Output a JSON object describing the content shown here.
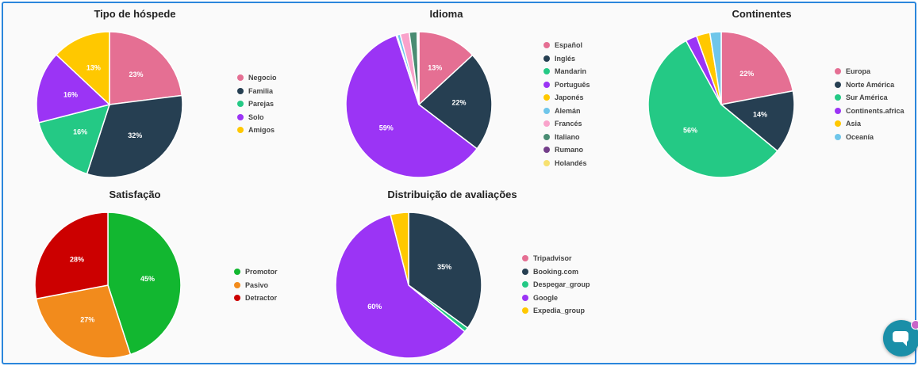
{
  "chart_data": [
    {
      "type": "pie",
      "title": "Tipo de hóspede",
      "slices": [
        {
          "label": "Negocio",
          "value": 23,
          "color": "#e56f93",
          "shown": "23%"
        },
        {
          "label": "Familia",
          "value": 32,
          "color": "#263f52",
          "shown": "32%"
        },
        {
          "label": "Parejas",
          "value": 16,
          "color": "#24c985",
          "shown": "16%"
        },
        {
          "label": "Solo",
          "value": 16,
          "color": "#9b34f5",
          "shown": "16%"
        },
        {
          "label": "Amigos",
          "value": 13,
          "color": "#ffc800",
          "shown": "13%"
        }
      ]
    },
    {
      "type": "pie",
      "title": "Idioma",
      "slices": [
        {
          "label": "Español",
          "value": 13,
          "color": "#e56f93",
          "shown": "13%"
        },
        {
          "label": "Inglés",
          "value": 22,
          "color": "#263f52",
          "shown": "22%"
        },
        {
          "label": "Mandarin",
          "value": 0,
          "color": "#24c985",
          "shown": ""
        },
        {
          "label": "Português",
          "value": 59,
          "color": "#9b34f5",
          "shown": "59%"
        },
        {
          "label": "Japonés",
          "value": 0.2,
          "color": "#ffc800",
          "shown": ""
        },
        {
          "label": "Alemán",
          "value": 0.7,
          "color": "#6fc6ea",
          "shown": ""
        },
        {
          "label": "Francés",
          "value": 2,
          "color": "#f9a3cb",
          "shown": ""
        },
        {
          "label": "Italiano",
          "value": 1.7,
          "color": "#4a8c73",
          "shown": ""
        },
        {
          "label": "Rumano",
          "value": 0.3,
          "color": "#733e8a",
          "shown": ""
        },
        {
          "label": "Holandés",
          "value": 0.1,
          "color": "#f7e170",
          "shown": ""
        }
      ]
    },
    {
      "type": "pie",
      "title": "Continentes",
      "slices": [
        {
          "label": "Europa",
          "value": 22,
          "color": "#e56f93",
          "shown": "22%"
        },
        {
          "label": "Norte América",
          "value": 14,
          "color": "#263f52",
          "shown": "14%"
        },
        {
          "label": "Sur América",
          "value": 56,
          "color": "#24c985",
          "shown": "56%"
        },
        {
          "label": "Continents.africa",
          "value": 2.5,
          "color": "#9b34f5",
          "shown": ""
        },
        {
          "label": "Asia",
          "value": 3,
          "color": "#ffc800",
          "shown": ""
        },
        {
          "label": "Oceanía",
          "value": 2.5,
          "color": "#6fc6ea",
          "shown": ""
        }
      ]
    },
    {
      "type": "pie",
      "title": "Satisfação",
      "slices": [
        {
          "label": "Promotor",
          "value": 45,
          "color": "#12b730",
          "shown": "45%"
        },
        {
          "label": "Pasivo",
          "value": 27,
          "color": "#f28b1c",
          "shown": "27%"
        },
        {
          "label": "Detractor",
          "value": 28,
          "color": "#cc0000",
          "shown": "28%"
        }
      ]
    },
    {
      "type": "pie",
      "title": "Distribuição de avaliações",
      "slices": [
        {
          "label": "Tripadvisor",
          "value": 0,
          "color": "#e56f93",
          "shown": ""
        },
        {
          "label": "Booking.com",
          "value": 35,
          "color": "#263f52",
          "shown": "35%"
        },
        {
          "label": "Despegar_group",
          "value": 1,
          "color": "#24c985",
          "shown": ""
        },
        {
          "label": "Google",
          "value": 60,
          "color": "#9b34f5",
          "shown": "60%"
        },
        {
          "label": "Expedia_group",
          "value": 4,
          "color": "#ffc800",
          "shown": ""
        }
      ]
    }
  ]
}
